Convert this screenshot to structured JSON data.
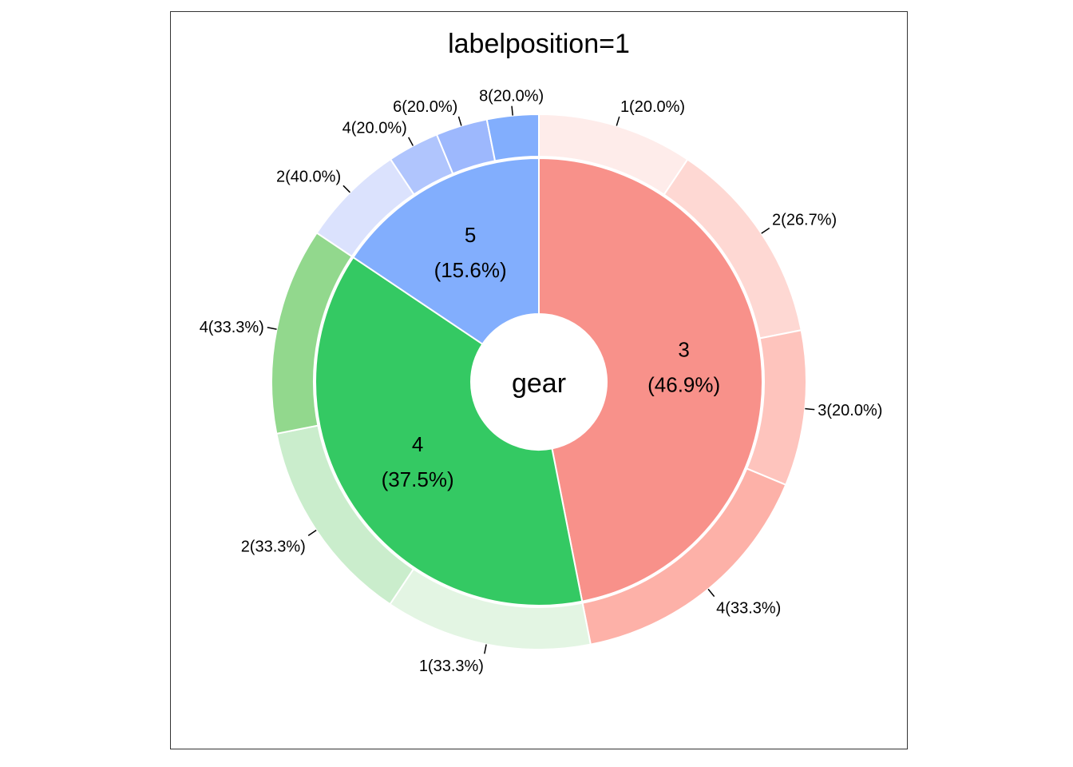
{
  "chart_data": {
    "type": "pie",
    "title": "labelposition=1",
    "center_label": "gear",
    "inner": [
      {
        "category": "3",
        "percent_label": "(46.9%)",
        "value": 46.9,
        "color": "#F8918A"
      },
      {
        "category": "4",
        "percent_label": "(37.5%)",
        "value": 37.5,
        "color": "#34C963"
      },
      {
        "category": "5",
        "percent_label": "(15.6%)",
        "value": 15.6,
        "color": "#82AEFD"
      }
    ],
    "outer": [
      {
        "group": "3",
        "label": "1(20.0%)",
        "value": 20.0,
        "color": "#FEECEA"
      },
      {
        "group": "3",
        "label": "2(26.7%)",
        "value": 26.7,
        "color": "#FED8D3"
      },
      {
        "group": "3",
        "label": "3(20.0%)",
        "value": 20.0,
        "color": "#FEC4BD"
      },
      {
        "group": "3",
        "label": "4(33.3%)",
        "value": 33.3,
        "color": "#FDB1A8"
      },
      {
        "group": "4",
        "label": "1(33.3%)",
        "value": 33.3,
        "color": "#E3F5E3"
      },
      {
        "group": "4",
        "label": "2(33.3%)",
        "value": 33.3,
        "color": "#CAEDCC"
      },
      {
        "group": "4",
        "label": "4(33.3%)",
        "value": 33.3,
        "color": "#92D88D"
      },
      {
        "group": "5",
        "label": "2(40.0%)",
        "value": 40.0,
        "color": "#DBE2FD"
      },
      {
        "group": "5",
        "label": "4(20.0%)",
        "value": 20.0,
        "color": "#B0C5FD"
      },
      {
        "group": "5",
        "label": "6(20.0%)",
        "value": 20.0,
        "color": "#9DB8FD"
      },
      {
        "group": "5",
        "label": "8(20.0%)",
        "value": 20.0,
        "color": "#82AEFD"
      }
    ]
  }
}
